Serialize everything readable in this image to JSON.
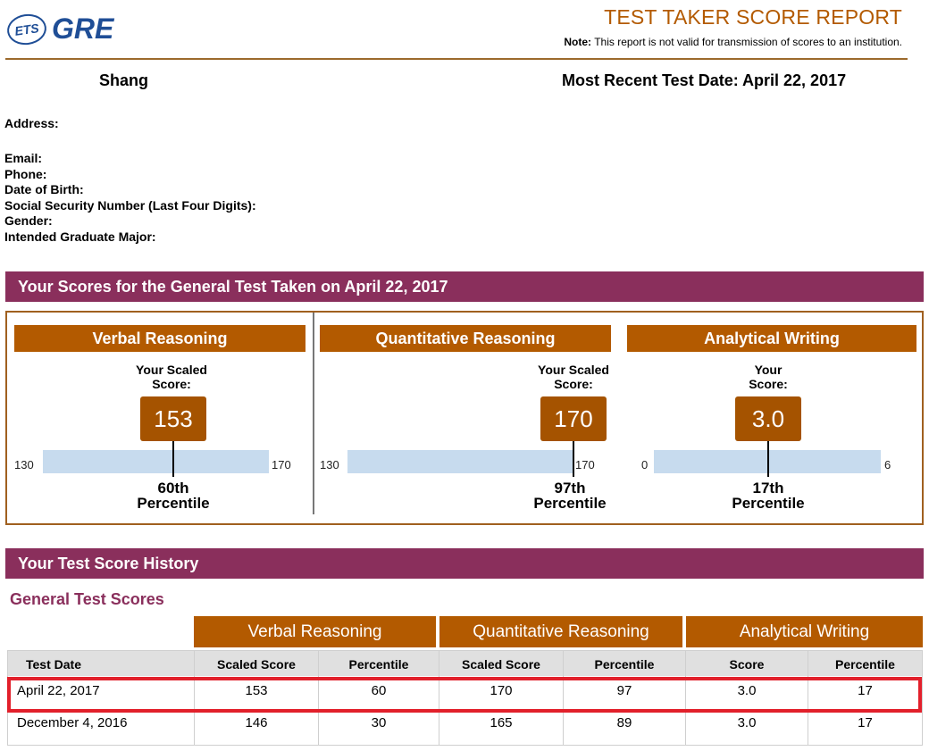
{
  "header": {
    "logo_ets": "ETS",
    "logo_gre": "GRE",
    "title": "TEST TAKER SCORE REPORT",
    "note_label": "Note:",
    "note_text": "This report is not valid for transmission of scores to an institution."
  },
  "candidate": {
    "name": "Shang",
    "recent_test": "Most Recent Test Date: April 22, 2017"
  },
  "info_fields": {
    "address": "Address:",
    "email": "Email:",
    "phone": "Phone:",
    "dob": "Date of Birth:",
    "ssn": "Social Security Number (Last Four Digits):",
    "gender": "Gender:",
    "major": "Intended Graduate Major:"
  },
  "scores_section": {
    "title": "Your Scores for the General Test Taken on April 22, 2017",
    "measures": [
      {
        "name": "Verbal Reasoning",
        "score_label_1": "Your Scaled",
        "score_label_2": "Score:",
        "score": "153",
        "min": "130",
        "max": "170",
        "percentile_value": "60th",
        "percentile_word": "Percentile",
        "score_fraction": 0.575
      },
      {
        "name": "Quantitative Reasoning",
        "score_label_1": "Your Scaled",
        "score_label_2": "Score:",
        "score": "170",
        "min": "130",
        "max": "170",
        "percentile_value": "97th",
        "percentile_word": "Percentile",
        "score_fraction": 1.0
      },
      {
        "name": "Analytical Writing",
        "score_label_1": "Your",
        "score_label_2": "Score:",
        "score": "3.0",
        "min": "0",
        "max": "6",
        "percentile_value": "17th",
        "percentile_word": "Percentile",
        "score_fraction": 0.5
      }
    ],
    "colors": {
      "header_bg": "#b35a00",
      "bar_fill": "#c7dbee",
      "section_bg": "#8a2f5c"
    }
  },
  "history": {
    "title": "Your Test Score History",
    "subtitle": "General Test Scores",
    "group_headers": [
      "Verbal Reasoning",
      "Quantitative Reasoning",
      "Analytical Writing"
    ],
    "columns": [
      "Test Date",
      "Scaled Score",
      "Percentile",
      "Scaled Score",
      "Percentile",
      "Score",
      "Percentile"
    ],
    "rows": [
      [
        "April 22, 2017",
        "153",
        "60",
        "170",
        "97",
        "3.0",
        "17"
      ],
      [
        "December 4, 2016",
        "146",
        "30",
        "165",
        "89",
        "3.0",
        "17"
      ]
    ],
    "highlight_color": "#e2202b"
  }
}
